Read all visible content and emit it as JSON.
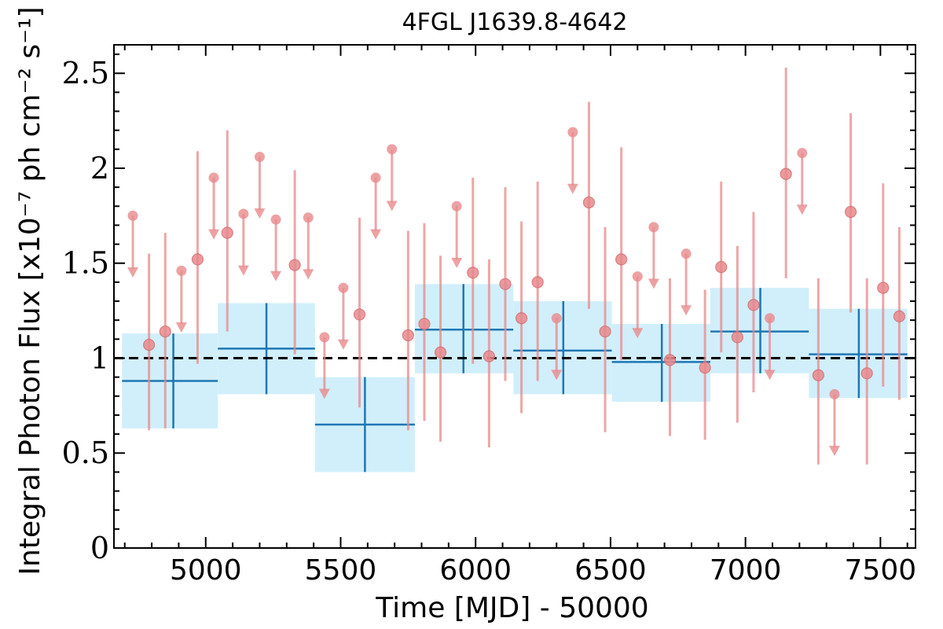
{
  "chart_data": {
    "type": "scatter",
    "title": "4FGL J1639.8-4642",
    "xlabel": "Time [MJD] - 50000",
    "ylabel": "Integral Photon Flux [x10⁻⁷ ph cm⁻² s⁻¹]",
    "xlim": [
      4660,
      7630
    ],
    "ylim": [
      0,
      2.65
    ],
    "xticks": [
      5000,
      5500,
      6000,
      6500,
      7000,
      7500
    ],
    "yticks": [
      0,
      0.5,
      1,
      1.5,
      2,
      2.5
    ],
    "ytick_labels": [
      "0",
      "0.5",
      "1",
      "1.5",
      "2",
      "2.5"
    ],
    "reference_line": 1.0,
    "colors": {
      "points": "#e8898c",
      "points_dark": "#d46a6d",
      "bins": "#1f77b4",
      "bin_fill": "#cdeefb",
      "reference": "#000000"
    },
    "series": [
      {
        "points": [
          {
            "x": 4790,
            "y": 1.07,
            "lo": 0.62,
            "hi": 1.55
          },
          {
            "x": 4850,
            "y": 1.14,
            "lo": 0.63,
            "hi": 1.66
          },
          {
            "x": 4970,
            "y": 1.52,
            "lo": 0.97,
            "hi": 2.09
          },
          {
            "x": 5080,
            "y": 1.66,
            "lo": 1.14,
            "hi": 2.2
          },
          {
            "x": 5330,
            "y": 1.49,
            "lo": 1.02,
            "hi": 1.99
          },
          {
            "x": 5570,
            "y": 1.23,
            "lo": 0.74,
            "hi": 1.74
          },
          {
            "x": 5750,
            "y": 1.12,
            "lo": 0.62,
            "hi": 1.67
          },
          {
            "x": 5810,
            "y": 1.18,
            "lo": 0.67,
            "hi": 1.71
          },
          {
            "x": 5870,
            "y": 1.03,
            "lo": 0.56,
            "hi": 1.54
          },
          {
            "x": 5990,
            "y": 1.45,
            "lo": 0.97,
            "hi": 1.95
          },
          {
            "x": 6050,
            "y": 1.01,
            "lo": 0.53,
            "hi": 1.52
          },
          {
            "x": 6110,
            "y": 1.39,
            "lo": 0.88,
            "hi": 1.9
          },
          {
            "x": 6170,
            "y": 1.21,
            "lo": 0.71,
            "hi": 1.72
          },
          {
            "x": 6230,
            "y": 1.4,
            "lo": 0.88,
            "hi": 1.93
          },
          {
            "x": 6420,
            "y": 1.82,
            "lo": 1.26,
            "hi": 2.35
          },
          {
            "x": 6480,
            "y": 1.14,
            "lo": 0.61,
            "hi": 1.69
          },
          {
            "x": 6540,
            "y": 1.52,
            "lo": 0.99,
            "hi": 2.11
          },
          {
            "x": 6720,
            "y": 0.99,
            "lo": 0.59,
            "hi": 1.42
          },
          {
            "x": 6850,
            "y": 0.95,
            "lo": 0.57,
            "hi": 1.36
          },
          {
            "x": 6910,
            "y": 1.48,
            "lo": 1.03,
            "hi": 1.93
          },
          {
            "x": 6970,
            "y": 1.11,
            "lo": 0.66,
            "hi": 1.59
          },
          {
            "x": 7030,
            "y": 1.28,
            "lo": 0.82,
            "hi": 1.77
          },
          {
            "x": 7150,
            "y": 1.97,
            "lo": 1.42,
            "hi": 2.53
          },
          {
            "x": 7270,
            "y": 0.91,
            "lo": 0.44,
            "hi": 1.42
          },
          {
            "x": 7390,
            "y": 1.77,
            "lo": 1.24,
            "hi": 2.29
          },
          {
            "x": 7450,
            "y": 0.92,
            "lo": 0.44,
            "hi": 1.42
          },
          {
            "x": 7510,
            "y": 1.37,
            "lo": 0.85,
            "hi": 1.92
          },
          {
            "x": 7570,
            "y": 1.22,
            "lo": 0.78,
            "hi": 1.69
          }
        ],
        "upper_limits": [
          {
            "x": 4730,
            "y": 1.75
          },
          {
            "x": 4910,
            "y": 1.46
          },
          {
            "x": 5030,
            "y": 1.95
          },
          {
            "x": 5140,
            "y": 1.76
          },
          {
            "x": 5200,
            "y": 2.06
          },
          {
            "x": 5260,
            "y": 1.73
          },
          {
            "x": 5380,
            "y": 1.74
          },
          {
            "x": 5440,
            "y": 1.11
          },
          {
            "x": 5510,
            "y": 1.37
          },
          {
            "x": 5630,
            "y": 1.95
          },
          {
            "x": 5690,
            "y": 2.1
          },
          {
            "x": 5930,
            "y": 1.8
          },
          {
            "x": 6300,
            "y": 1.21
          },
          {
            "x": 6360,
            "y": 2.19
          },
          {
            "x": 6600,
            "y": 1.43
          },
          {
            "x": 6660,
            "y": 1.69
          },
          {
            "x": 6780,
            "y": 1.55
          },
          {
            "x": 7090,
            "y": 1.21
          },
          {
            "x": 7210,
            "y": 2.08
          },
          {
            "x": 7330,
            "y": 0.81
          }
        ]
      },
      {
        "bins": [
          {
            "x0": 4690,
            "x1": 5045,
            "xc": 4880,
            "y": 0.88,
            "lo": 0.63,
            "hi": 1.13
          },
          {
            "x0": 5045,
            "x1": 5405,
            "xc": 5225,
            "y": 1.05,
            "lo": 0.81,
            "hi": 1.29
          },
          {
            "x0": 5405,
            "x1": 5775,
            "xc": 5590,
            "y": 0.65,
            "lo": 0.4,
            "hi": 0.9
          },
          {
            "x0": 5775,
            "x1": 6140,
            "xc": 5955,
            "y": 1.15,
            "lo": 0.92,
            "hi": 1.39
          },
          {
            "x0": 6140,
            "x1": 6505,
            "xc": 6325,
            "y": 1.04,
            "lo": 0.81,
            "hi": 1.3
          },
          {
            "x0": 6505,
            "x1": 6870,
            "xc": 6690,
            "y": 0.98,
            "lo": 0.77,
            "hi": 1.18
          },
          {
            "x0": 6870,
            "x1": 7235,
            "xc": 7055,
            "y": 1.14,
            "lo": 0.92,
            "hi": 1.37
          },
          {
            "x0": 7235,
            "x1": 7600,
            "xc": 7420,
            "y": 1.02,
            "lo": 0.79,
            "hi": 1.26
          }
        ]
      }
    ]
  }
}
